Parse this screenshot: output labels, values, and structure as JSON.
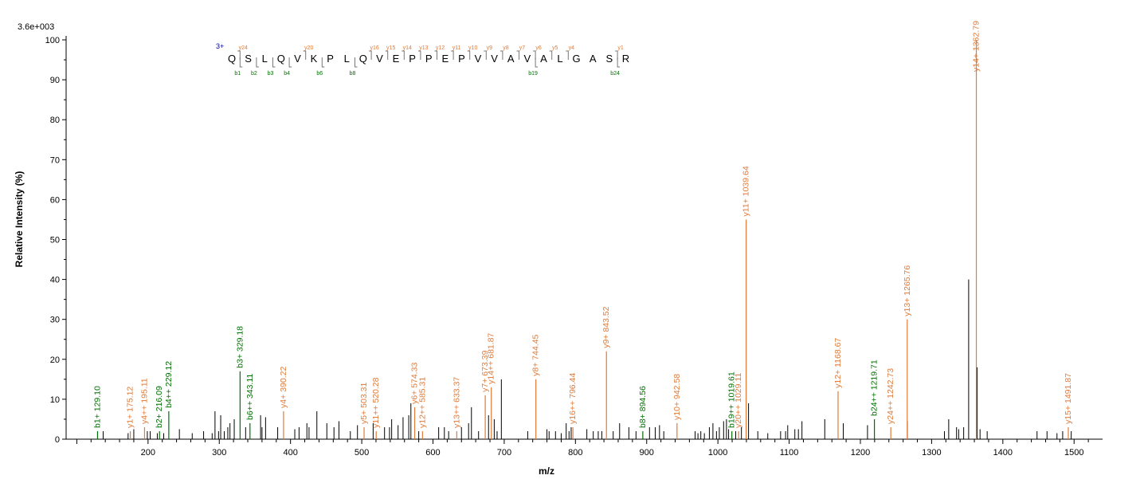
{
  "chart_data": {
    "type": "bar",
    "title": "",
    "intensity_scale_label": "3.6e+003",
    "xlabel": "m/z",
    "ylabel": "Relative   Intensity (%)",
    "xlim": [
      85,
      1540
    ],
    "ylim": [
      0,
      100
    ],
    "x_ticks": [
      200,
      300,
      400,
      500,
      600,
      700,
      800,
      900,
      1000,
      1100,
      1200,
      1300,
      1400,
      1500
    ],
    "x_tick_labels": [
      "200",
      "300",
      "400",
      "500",
      "600",
      "700",
      "800",
      "900",
      "1000",
      "1100",
      "1200",
      "1300",
      "1400",
      "1500"
    ],
    "y_ticks": [
      0,
      10,
      20,
      30,
      40,
      50,
      60,
      70,
      80,
      90,
      100
    ],
    "y_tick_labels": [
      "0",
      "10",
      "20",
      "30",
      "40",
      "50",
      "60",
      "70",
      "80",
      "90",
      "100"
    ],
    "colors": {
      "b_ion": "#007000",
      "y_ion": "#e07b39",
      "other": "#000000",
      "charge": "#00008b"
    },
    "annotated_peaks": [
      {
        "mz": 129.1,
        "intensity": 2,
        "ion": "b",
        "label": "b1+ 129.10"
      },
      {
        "mz": 175.12,
        "intensity": 2,
        "ion": "y",
        "label": "y1+ 175.12"
      },
      {
        "mz": 195.11,
        "intensity": 3,
        "ion": "y",
        "label": "y4++ 195.11"
      },
      {
        "mz": 216.09,
        "intensity": 2,
        "ion": "b",
        "label": "b2+ 216.09"
      },
      {
        "mz": 229.12,
        "intensity": 7,
        "ion": "b",
        "label": "b4++ 229.12"
      },
      {
        "mz": 329.18,
        "intensity": 17,
        "ion": "b",
        "label": "b3+ 329.18"
      },
      {
        "mz": 343.11,
        "intensity": 4,
        "ion": "b",
        "label": "b6++ 343.11"
      },
      {
        "mz": 390.22,
        "intensity": 7,
        "ion": "y",
        "label": "y4+ 390.22"
      },
      {
        "mz": 503.31,
        "intensity": 3,
        "ion": "y",
        "label": "y5+ 503.31"
      },
      {
        "mz": 520.28,
        "intensity": 2,
        "ion": "y",
        "label": "y11++ 520.28"
      },
      {
        "mz": 574.33,
        "intensity": 8,
        "ion": "y",
        "label": "y6+ 574.33"
      },
      {
        "mz": 585.31,
        "intensity": 2,
        "ion": "y",
        "label": "y12++ 585.31"
      },
      {
        "mz": 633.37,
        "intensity": 2,
        "ion": "y",
        "label": "y13++ 633.37"
      },
      {
        "mz": 673.39,
        "intensity": 11,
        "ion": "y",
        "label": "y7+ 673.39"
      },
      {
        "mz": 681.87,
        "intensity": 13,
        "ion": "y",
        "label": "y14++ 681.87"
      },
      {
        "mz": 744.45,
        "intensity": 15,
        "ion": "y",
        "label": "y8+ 744.45"
      },
      {
        "mz": 796.44,
        "intensity": 3,
        "ion": "y",
        "label": "y16++ 796.44"
      },
      {
        "mz": 843.52,
        "intensity": 22,
        "ion": "y",
        "label": "y9+ 843.52"
      },
      {
        "mz": 894.56,
        "intensity": 2,
        "ion": "b",
        "label": "b8+ 894.56"
      },
      {
        "mz": 942.58,
        "intensity": 4,
        "ion": "y",
        "label": "y10+ 942.58"
      },
      {
        "mz": 1019.61,
        "intensity": 2,
        "ion": "b",
        "label": "b19++ 1019.61"
      },
      {
        "mz": 1029.11,
        "intensity": 2,
        "ion": "y",
        "label": "y20++ 1029.11"
      },
      {
        "mz": 1039.64,
        "intensity": 55,
        "ion": "y",
        "label": "y11+ 1039.64"
      },
      {
        "mz": 1168.67,
        "intensity": 12,
        "ion": "y",
        "label": "y12+ 1168.67"
      },
      {
        "mz": 1219.71,
        "intensity": 5,
        "ion": "b",
        "label": "b24++ 1219.71"
      },
      {
        "mz": 1242.73,
        "intensity": 3,
        "ion": "y",
        "label": "y24++ 1242.73"
      },
      {
        "mz": 1265.76,
        "intensity": 30,
        "ion": "y",
        "label": "y13+ 1265.76"
      },
      {
        "mz": 1362.79,
        "intensity": 100,
        "ion": "y",
        "label": "y14+ 1362.79"
      },
      {
        "mz": 1491.87,
        "intensity": 3,
        "ion": "y",
        "label": "y15+ 1491.87"
      }
    ],
    "unannotated_peaks": [
      {
        "mz": 137,
        "intensity": 2
      },
      {
        "mz": 172,
        "intensity": 1.5
      },
      {
        "mz": 180,
        "intensity": 2.5
      },
      {
        "mz": 199,
        "intensity": 2
      },
      {
        "mz": 203,
        "intensity": 2
      },
      {
        "mz": 213,
        "intensity": 1.5
      },
      {
        "mz": 222,
        "intensity": 1.5
      },
      {
        "mz": 244,
        "intensity": 2.5
      },
      {
        "mz": 262,
        "intensity": 1.5
      },
      {
        "mz": 278,
        "intensity": 2
      },
      {
        "mz": 290,
        "intensity": 1.5
      },
      {
        "mz": 294,
        "intensity": 7
      },
      {
        "mz": 299,
        "intensity": 2
      },
      {
        "mz": 302,
        "intensity": 6
      },
      {
        "mz": 307,
        "intensity": 2
      },
      {
        "mz": 312,
        "intensity": 3
      },
      {
        "mz": 315,
        "intensity": 4
      },
      {
        "mz": 321,
        "intensity": 5
      },
      {
        "mz": 337,
        "intensity": 3
      },
      {
        "mz": 358,
        "intensity": 6
      },
      {
        "mz": 360,
        "intensity": 3
      },
      {
        "mz": 365,
        "intensity": 5.5
      },
      {
        "mz": 382,
        "intensity": 3
      },
      {
        "mz": 406,
        "intensity": 2.5
      },
      {
        "mz": 412,
        "intensity": 3
      },
      {
        "mz": 423,
        "intensity": 4
      },
      {
        "mz": 426,
        "intensity": 3
      },
      {
        "mz": 437,
        "intensity": 7
      },
      {
        "mz": 451,
        "intensity": 4
      },
      {
        "mz": 461,
        "intensity": 3
      },
      {
        "mz": 468,
        "intensity": 4.5
      },
      {
        "mz": 484,
        "intensity": 2
      },
      {
        "mz": 494,
        "intensity": 3.5
      },
      {
        "mz": 516,
        "intensity": 4
      },
      {
        "mz": 532,
        "intensity": 3
      },
      {
        "mz": 539,
        "intensity": 3
      },
      {
        "mz": 542,
        "intensity": 5
      },
      {
        "mz": 551,
        "intensity": 3.5
      },
      {
        "mz": 558,
        "intensity": 5.5
      },
      {
        "mz": 566,
        "intensity": 6
      },
      {
        "mz": 569,
        "intensity": 9
      },
      {
        "mz": 580,
        "intensity": 2
      },
      {
        "mz": 608,
        "intensity": 3
      },
      {
        "mz": 616,
        "intensity": 3
      },
      {
        "mz": 622,
        "intensity": 2
      },
      {
        "mz": 640,
        "intensity": 3
      },
      {
        "mz": 650,
        "intensity": 4
      },
      {
        "mz": 654,
        "intensity": 8
      },
      {
        "mz": 664,
        "intensity": 2
      },
      {
        "mz": 678,
        "intensity": 6
      },
      {
        "mz": 686,
        "intensity": 5
      },
      {
        "mz": 690,
        "intensity": 2
      },
      {
        "mz": 696,
        "intensity": 15
      },
      {
        "mz": 733,
        "intensity": 2
      },
      {
        "mz": 760,
        "intensity": 2.5
      },
      {
        "mz": 763,
        "intensity": 2
      },
      {
        "mz": 772,
        "intensity": 2
      },
      {
        "mz": 780,
        "intensity": 1.5
      },
      {
        "mz": 787,
        "intensity": 4
      },
      {
        "mz": 791,
        "intensity": 2
      },
      {
        "mz": 794,
        "intensity": 3
      },
      {
        "mz": 816,
        "intensity": 2.5
      },
      {
        "mz": 825,
        "intensity": 2
      },
      {
        "mz": 832,
        "intensity": 2
      },
      {
        "mz": 837,
        "intensity": 2
      },
      {
        "mz": 853,
        "intensity": 2
      },
      {
        "mz": 862,
        "intensity": 4
      },
      {
        "mz": 875,
        "intensity": 3
      },
      {
        "mz": 885,
        "intensity": 2
      },
      {
        "mz": 904,
        "intensity": 3
      },
      {
        "mz": 912,
        "intensity": 3
      },
      {
        "mz": 918,
        "intensity": 3.5
      },
      {
        "mz": 924,
        "intensity": 2
      },
      {
        "mz": 968,
        "intensity": 2
      },
      {
        "mz": 972,
        "intensity": 1.5
      },
      {
        "mz": 976,
        "intensity": 2
      },
      {
        "mz": 981,
        "intensity": 1.5
      },
      {
        "mz": 988,
        "intensity": 3
      },
      {
        "mz": 993,
        "intensity": 4
      },
      {
        "mz": 998,
        "intensity": 2
      },
      {
        "mz": 1002,
        "intensity": 3
      },
      {
        "mz": 1008,
        "intensity": 4.5
      },
      {
        "mz": 1012,
        "intensity": 5
      },
      {
        "mz": 1015,
        "intensity": 2.5
      },
      {
        "mz": 1025,
        "intensity": 2
      },
      {
        "mz": 1033,
        "intensity": 3
      },
      {
        "mz": 1043,
        "intensity": 9
      },
      {
        "mz": 1056,
        "intensity": 2
      },
      {
        "mz": 1070,
        "intensity": 1.5
      },
      {
        "mz": 1088,
        "intensity": 2
      },
      {
        "mz": 1095,
        "intensity": 2
      },
      {
        "mz": 1098,
        "intensity": 3.5
      },
      {
        "mz": 1108,
        "intensity": 2.5
      },
      {
        "mz": 1113,
        "intensity": 2.5
      },
      {
        "mz": 1118,
        "intensity": 4.5
      },
      {
        "mz": 1150,
        "intensity": 5
      },
      {
        "mz": 1176,
        "intensity": 4
      },
      {
        "mz": 1210,
        "intensity": 3.5
      },
      {
        "mz": 1266,
        "intensity": 4.5
      },
      {
        "mz": 1318,
        "intensity": 2
      },
      {
        "mz": 1324,
        "intensity": 5
      },
      {
        "mz": 1335,
        "intensity": 3
      },
      {
        "mz": 1338,
        "intensity": 2.5
      },
      {
        "mz": 1345,
        "intensity": 3
      },
      {
        "mz": 1352,
        "intensity": 40
      },
      {
        "mz": 1364,
        "intensity": 18
      },
      {
        "mz": 1368,
        "intensity": 2.5
      },
      {
        "mz": 1378,
        "intensity": 2
      },
      {
        "mz": 1448,
        "intensity": 2
      },
      {
        "mz": 1462,
        "intensity": 2
      },
      {
        "mz": 1476,
        "intensity": 1.5
      },
      {
        "mz": 1484,
        "intensity": 2
      },
      {
        "mz": 1496,
        "intensity": 2
      }
    ]
  },
  "sequence": {
    "charge": "3+",
    "residues": [
      "Q",
      "S",
      "L",
      "Q",
      "V",
      "K",
      "P",
      "L",
      "Q",
      "V",
      "E",
      "P",
      "P",
      "E",
      "P",
      "V",
      "V",
      "A",
      "V",
      "A",
      "L",
      "G",
      "A",
      "S",
      "R"
    ],
    "y_marks": [
      {
        "after": 1,
        "label": "y24"
      },
      {
        "after": 5,
        "label": "y20"
      },
      {
        "after": 9,
        "label": "y16"
      },
      {
        "after": 10,
        "label": "y15"
      },
      {
        "after": 11,
        "label": "y14"
      },
      {
        "after": 12,
        "label": "y13"
      },
      {
        "after": 13,
        "label": "y12"
      },
      {
        "after": 14,
        "label": "y11"
      },
      {
        "after": 15,
        "label": "y10"
      },
      {
        "after": 16,
        "label": "y9"
      },
      {
        "after": 17,
        "label": "y8"
      },
      {
        "after": 18,
        "label": "y7"
      },
      {
        "after": 19,
        "label": "y6"
      },
      {
        "after": 20,
        "label": "y5"
      },
      {
        "after": 21,
        "label": "y4"
      },
      {
        "after": 24,
        "label": "y1"
      }
    ],
    "b_marks": [
      {
        "after": 1,
        "label": "b1"
      },
      {
        "after": 2,
        "label": "b2"
      },
      {
        "after": 3,
        "label": "b3"
      },
      {
        "after": 4,
        "label": "b4"
      },
      {
        "after": 6,
        "label": "b6"
      },
      {
        "after": 8,
        "label": "b8"
      },
      {
        "after": 19,
        "label": "b19"
      },
      {
        "after": 24,
        "label": "b24"
      }
    ]
  }
}
